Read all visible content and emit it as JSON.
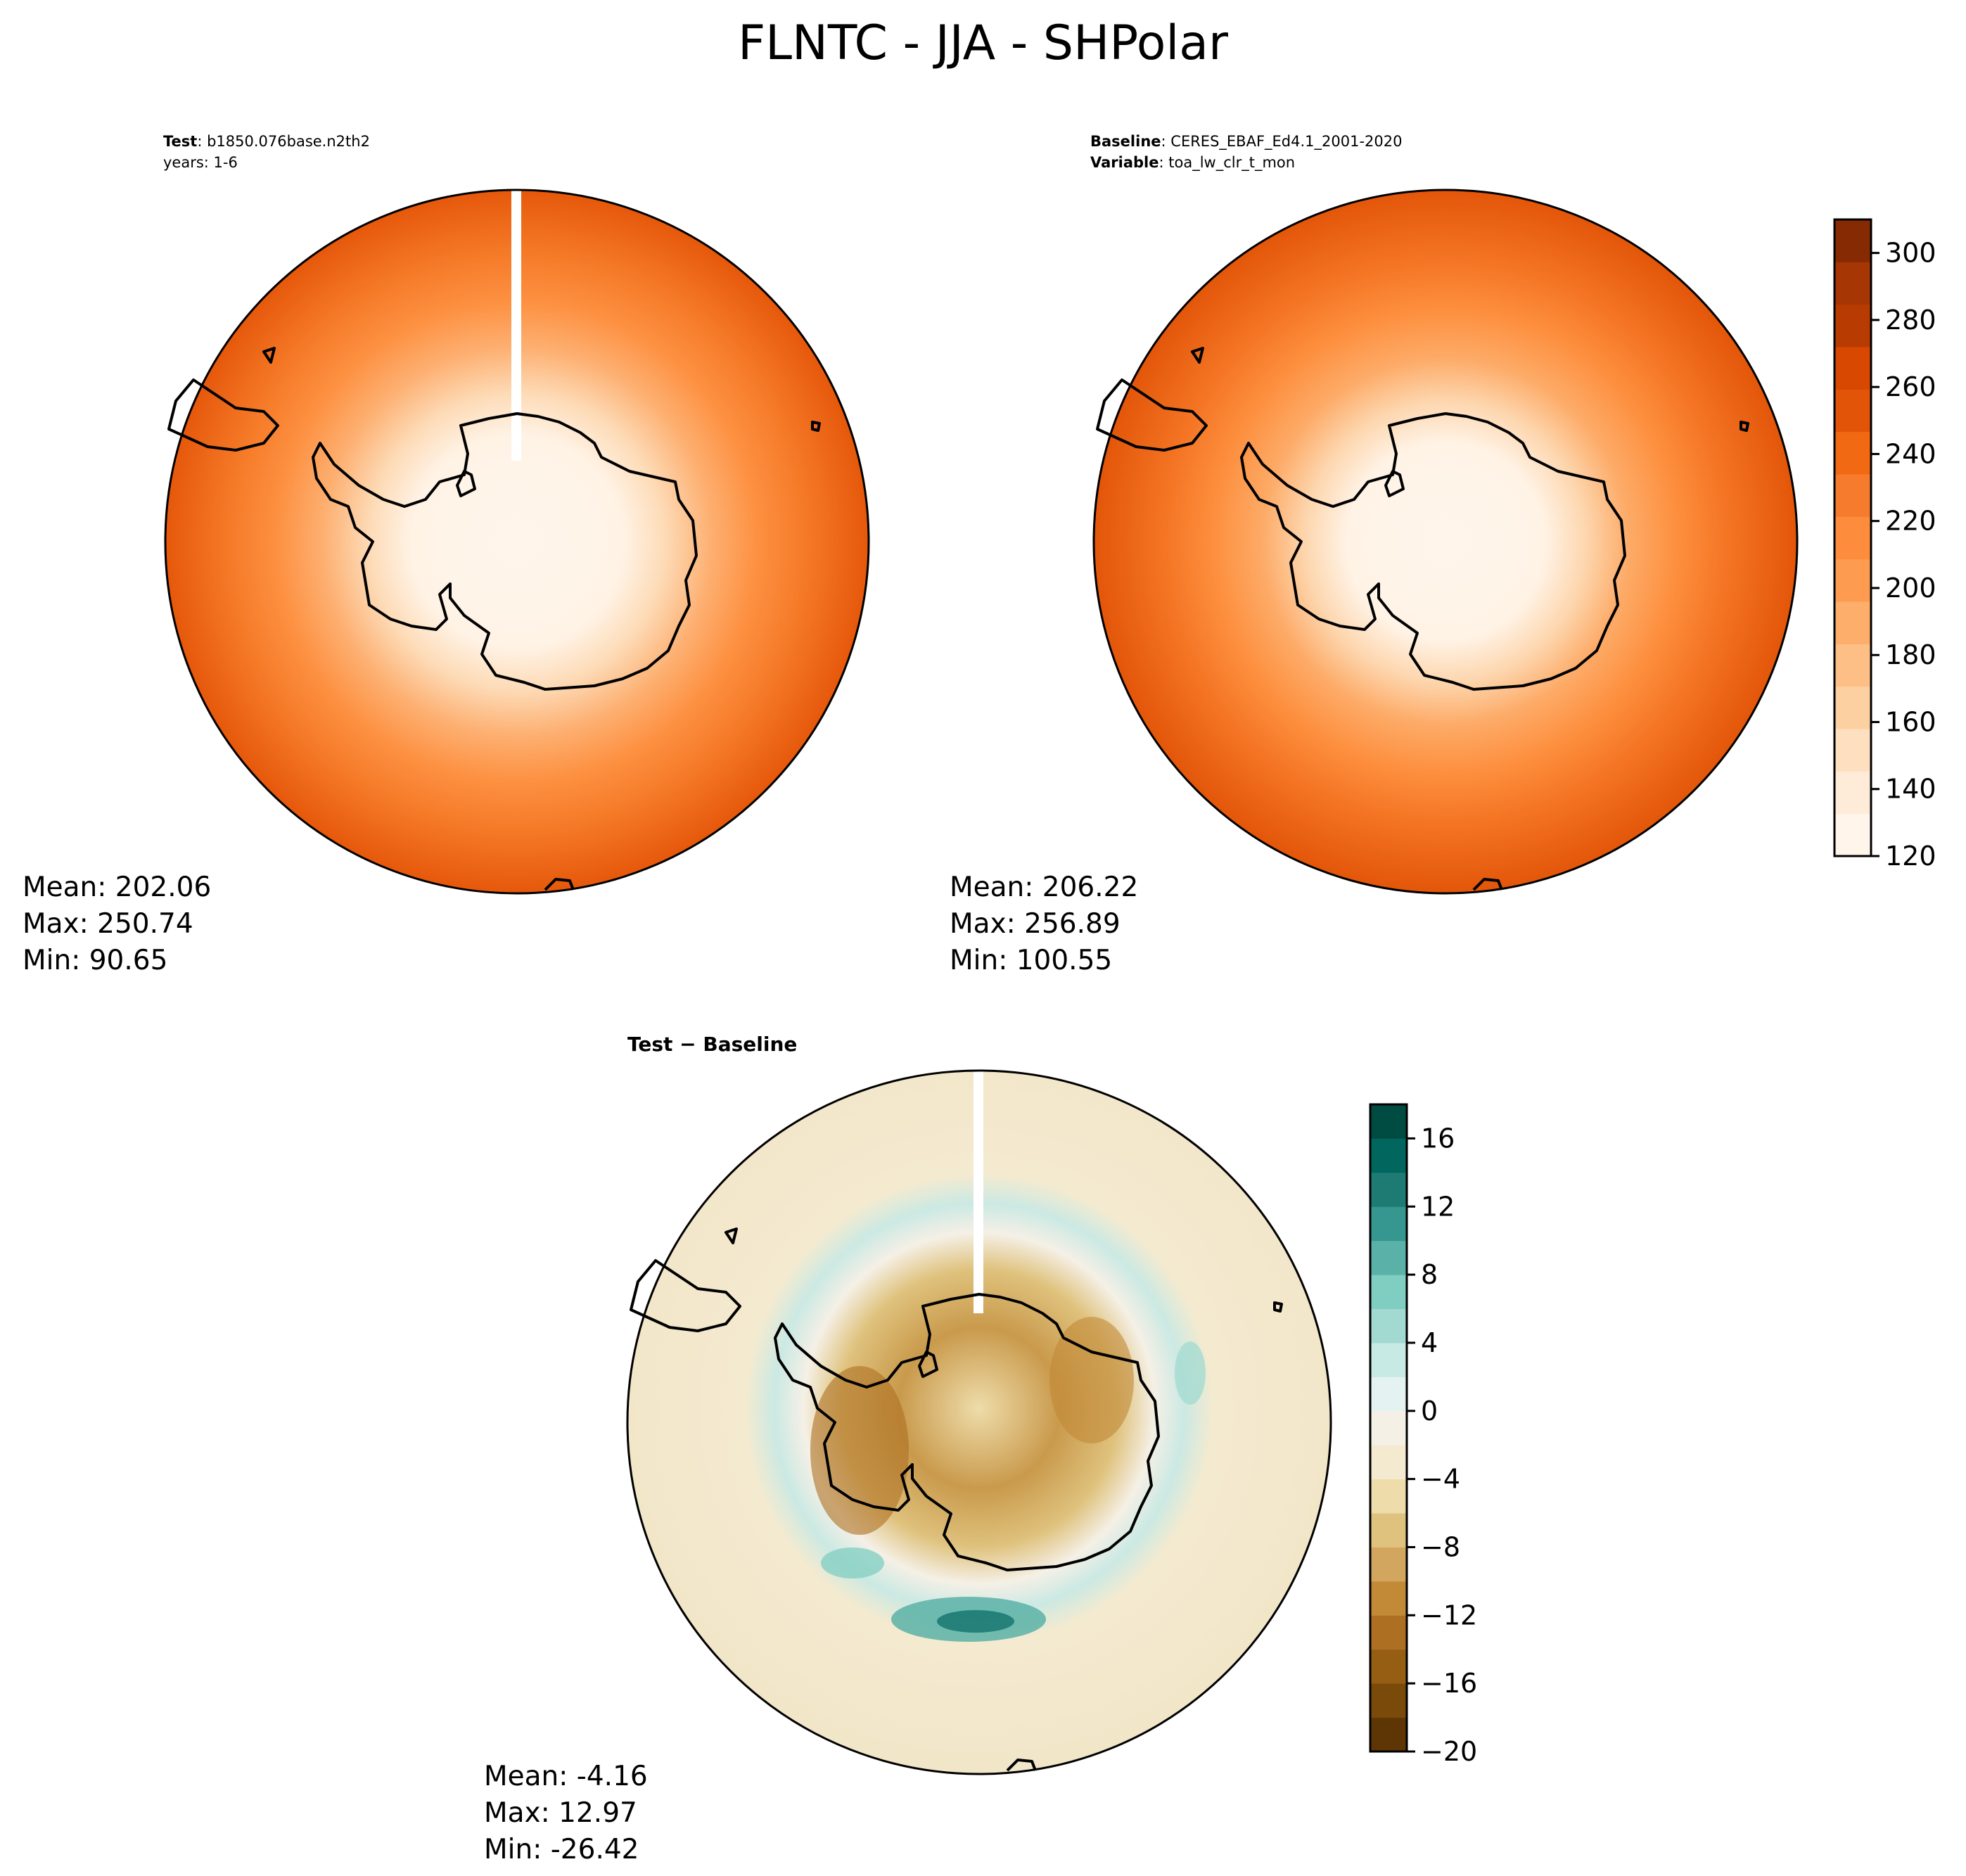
{
  "figure": {
    "title": "FLNTC - JJA - SHPolar"
  },
  "panels": {
    "test": {
      "label_key": "Test",
      "label_value": "b1850.076base.n2th2",
      "label_line2": "years: 1-6",
      "stats": {
        "mean": "Mean: 202.06",
        "max": "Max: 250.74",
        "min": "Min: 90.65"
      }
    },
    "baseline": {
      "label_key": "Baseline",
      "label_value": "CERES_EBAF_Ed4.1_2001-2020",
      "label2_key": "Variable",
      "label2_value": "toa_lw_clr_t_mon",
      "stats": {
        "mean": "Mean: 206.22",
        "max": "Max: 256.89",
        "min": "Min: 100.55"
      }
    },
    "diff": {
      "title": "Test − Baseline",
      "stats": {
        "mean": "Mean: -4.16",
        "max": "Max: 12.97",
        "min": "Min: -26.42"
      }
    }
  },
  "chart_data": [
    {
      "type": "heatmap",
      "title": "Test: b1850.076base.n2th2 years: 1-6",
      "projection": "south polar stereographic",
      "colormap": "Oranges",
      "colorbar": {
        "min": 120,
        "max": 310,
        "ticks": [
          120,
          140,
          160,
          180,
          200,
          220,
          240,
          260,
          280,
          300
        ]
      },
      "stats": {
        "mean": 202.06,
        "max": 250.74,
        "min": 90.65
      }
    },
    {
      "type": "heatmap",
      "title": "Baseline: CERES_EBAF_Ed4.1_2001-2020 Variable: toa_lw_clr_t_mon",
      "projection": "south polar stereographic",
      "colormap": "Oranges",
      "colorbar": {
        "min": 120,
        "max": 310,
        "ticks": [
          120,
          140,
          160,
          180,
          200,
          220,
          240,
          260,
          280,
          300
        ]
      },
      "stats": {
        "mean": 206.22,
        "max": 256.89,
        "min": 100.55
      }
    },
    {
      "type": "heatmap",
      "title": "Test − Baseline",
      "projection": "south polar stereographic",
      "colormap": "BrBG",
      "colorbar": {
        "min": -20,
        "max": 18,
        "ticks": [
          -20,
          -16,
          -12,
          -8,
          -4,
          0,
          4,
          8,
          12,
          16
        ]
      },
      "stats": {
        "mean": -4.16,
        "max": 12.97,
        "min": -26.42
      }
    }
  ],
  "colors": {
    "oranges": [
      "#fff5eb",
      "#feebd8",
      "#fee0c1",
      "#fdd0a2",
      "#fdbf86",
      "#fdae6b",
      "#fd9b51",
      "#fd8d3c",
      "#f67b2c",
      "#f16913",
      "#e25508",
      "#d94801",
      "#b83c02",
      "#a63603",
      "#862a04"
    ],
    "brbg": [
      "#5e3605",
      "#7a4a0b",
      "#955e13",
      "#ad7022",
      "#c28937",
      "#d2a65f",
      "#dfc27d",
      "#eedcaa",
      "#f4ead0",
      "#f5f0e6",
      "#e4f3f1",
      "#c7eae5",
      "#a2d9d0",
      "#80cdc1",
      "#5ab1a7",
      "#35978f",
      "#1d7b74",
      "#01665e",
      "#004c42"
    ],
    "coastline": "#000000"
  }
}
